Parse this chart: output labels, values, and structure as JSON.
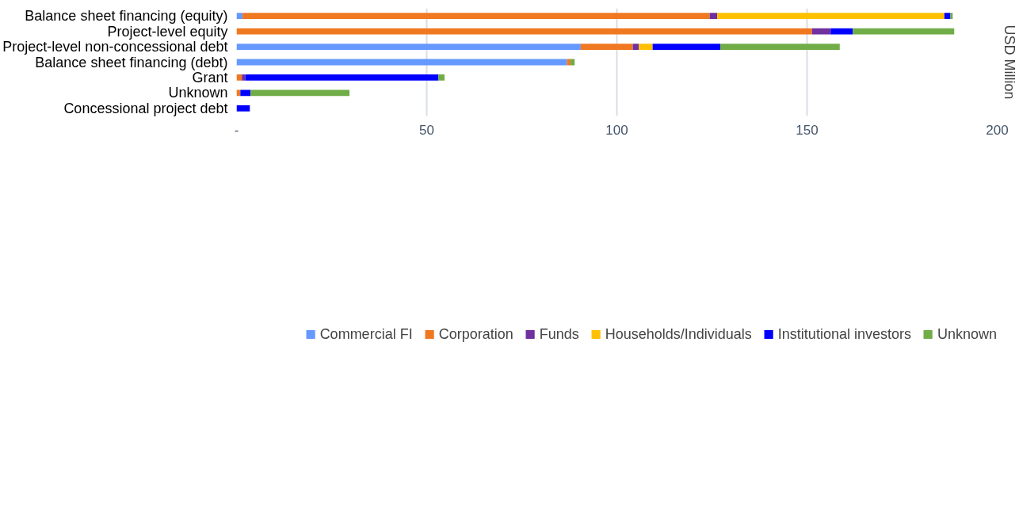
{
  "chart_data": {
    "type": "bar",
    "orientation": "horizontal",
    "stacked": true,
    "categories": [
      "Balance sheet financing (equity)",
      "Project-level equity",
      "Project-level non-concessional debt",
      "Balance sheet financing (debt)",
      "Grant",
      "Unknown",
      "Concessional project debt"
    ],
    "series": [
      {
        "name": "Commercial FI",
        "color": "#6699ff",
        "values": [
          1.6,
          null,
          90.5,
          86.9,
          null,
          null,
          null
        ]
      },
      {
        "name": "Corporation",
        "color": "#f07820",
        "values": [
          122.8,
          151.3,
          13.7,
          0.9,
          1.4,
          1.0,
          null
        ]
      },
      {
        "name": "Funds",
        "color": "#7030a0",
        "values": [
          2.0,
          4.9,
          1.6,
          null,
          0.9,
          null,
          null
        ]
      },
      {
        "name": "Households/Individuals",
        "color": "#ffc000",
        "values": [
          59.7,
          null,
          3.6,
          null,
          null,
          null,
          null
        ]
      },
      {
        "name": "Institutional investors",
        "color": "#0000ff",
        "values": [
          1.6,
          5.8,
          17.8,
          null,
          50.8,
          2.7,
          3.5
        ]
      },
      {
        "name": "Unknown",
        "color": "#70ad47",
        "values": [
          0.6,
          26.7,
          31.4,
          1.1,
          1.6,
          26.0,
          null
        ]
      }
    ],
    "xlim": [
      0,
      200
    ],
    "xticks": [
      {
        "value": 0,
        "label": "-"
      },
      50,
      100,
      150,
      200
    ],
    "y2label": "USD Million",
    "grid": "x",
    "legend": "bottom"
  }
}
